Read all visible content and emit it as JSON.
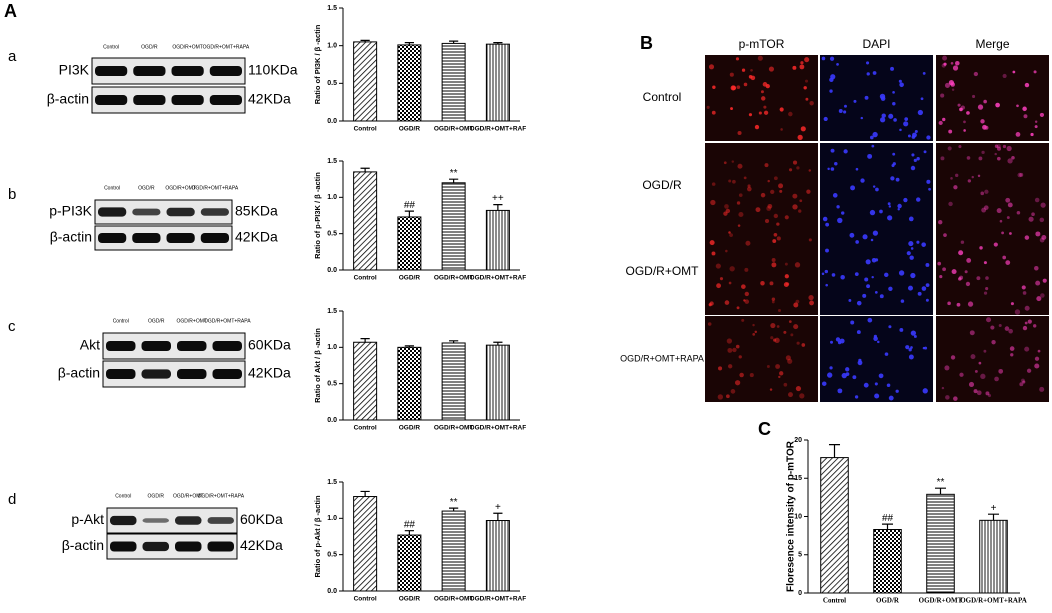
{
  "panel_labels": [
    "A",
    "B",
    "C"
  ],
  "blots": [
    {
      "label": "a",
      "lanes": [
        "Control",
        "OGD/R",
        "OGD/R+OMT",
        "OGD/R+OMT+RAPA"
      ],
      "rows": [
        {
          "name": "PI3K",
          "size": "110KDa"
        },
        {
          "name": "β-actin",
          "size": "42KDa"
        }
      ]
    },
    {
      "label": "b",
      "lanes": [
        "Control",
        "OGD/R",
        "OGD/R+OMT",
        "OGD/R+OMT+RAPA"
      ],
      "rows": [
        {
          "name": "p-PI3K",
          "size": "85KDa"
        },
        {
          "name": "β-actin",
          "size": "42KDa"
        }
      ]
    },
    {
      "label": "c",
      "lanes": [
        "Control",
        "OGD/R",
        "OGD/R+OMT",
        "OGD/R+OMT+RAPA"
      ],
      "rows": [
        {
          "name": "Akt",
          "size": "60KDa"
        },
        {
          "name": "β-actin",
          "size": "42KDa"
        }
      ]
    },
    {
      "label": "d",
      "lanes": [
        "Control",
        "OGD/R",
        "OGD/R+OMT",
        "OGD/R+OMT+RAPA"
      ],
      "rows": [
        {
          "name": "p-Akt",
          "size": "60KDa"
        },
        {
          "name": "β-actin",
          "size": "42KDa"
        }
      ]
    }
  ],
  "images": {
    "columns": [
      "p-mTOR",
      "DAPI",
      "Merge"
    ],
    "rows": [
      "Control",
      "OGD/R",
      "OGD/R+OMT",
      "OGD/R+OMT+RAPA"
    ]
  },
  "chart_data": [
    {
      "type": "bar",
      "y_label": "Ratio of PI3K / β -actin",
      "categories": [
        "Control",
        "OGD/R",
        "OGD/R+OMT",
        "OGD/R+OMT+RAF"
      ],
      "values": [
        1.05,
        1.01,
        1.03,
        1.02
      ],
      "errors": [
        0.02,
        0.03,
        0.03,
        0.02
      ],
      "ylim": [
        0,
        1.5
      ],
      "yticks": [
        {
          "value": 0,
          "label": "0.0"
        },
        {
          "value": 0.5,
          "label": "0.5"
        },
        {
          "value": 1,
          "label": "1.0"
        },
        {
          "value": 1.5,
          "label": "1.5"
        }
      ]
    },
    {
      "type": "bar",
      "y_label": "Ratio of p-PI3K / β -actin",
      "categories": [
        "Control",
        "OGD/R",
        "OGD/R+OMT",
        "OGD/R+OMT+RAF"
      ],
      "values": [
        1.35,
        0.73,
        1.2,
        0.82
      ],
      "errors": [
        0.05,
        0.08,
        0.05,
        0.08
      ],
      "annotations": [
        null,
        "##",
        "**",
        "++"
      ],
      "ylim": [
        0,
        1.5
      ],
      "yticks": [
        {
          "value": 0,
          "label": "0.0"
        },
        {
          "value": 0.5,
          "label": "0.5"
        },
        {
          "value": 1,
          "label": "1.0"
        },
        {
          "value": 1.5,
          "label": "1.5"
        }
      ]
    },
    {
      "type": "bar",
      "y_label": "Ratio of Akt / β -actin",
      "categories": [
        "Control",
        "OGD/R",
        "OGD/R+OMT",
        "OGD/R+OMT+RAF"
      ],
      "values": [
        1.07,
        1.0,
        1.06,
        1.03
      ],
      "errors": [
        0.05,
        0.02,
        0.03,
        0.04
      ],
      "ylim": [
        0,
        1.5
      ],
      "yticks": [
        {
          "value": 0,
          "label": "0.0"
        },
        {
          "value": 0.5,
          "label": "0.5"
        },
        {
          "value": 1,
          "label": "1.0"
        },
        {
          "value": 1.5,
          "label": "1.5"
        }
      ]
    },
    {
      "type": "bar",
      "y_label": "Ratio of p-Akt / β -actin",
      "categories": [
        "Control",
        "OGD/R",
        "OGD/R+OMT",
        "OGD/R+OMT+RAF"
      ],
      "values": [
        1.3,
        0.77,
        1.1,
        0.97
      ],
      "errors": [
        0.07,
        0.06,
        0.04,
        0.1
      ],
      "annotations": [
        null,
        "##",
        "**",
        "+"
      ],
      "ylim": [
        0,
        1.5
      ],
      "yticks": [
        {
          "value": 0,
          "label": "0.0"
        },
        {
          "value": 0.5,
          "label": "0.5"
        },
        {
          "value": 1,
          "label": "1.0"
        },
        {
          "value": 1.5,
          "label": "1.5"
        }
      ]
    },
    {
      "type": "bar",
      "y_label": "Floresence intensity of p-mTOR",
      "categories": [
        "Control",
        "OGD/R",
        "OGD/R+OMT",
        "OGD/R+OMT+RAPA"
      ],
      "values": [
        17.7,
        8.3,
        12.9,
        9.5
      ],
      "errors": [
        1.7,
        0.7,
        0.8,
        0.8
      ],
      "annotations": [
        null,
        "##",
        "**",
        "+"
      ],
      "ylim": [
        0,
        20
      ],
      "yticks": [
        0,
        5,
        10,
        15,
        20
      ]
    }
  ]
}
